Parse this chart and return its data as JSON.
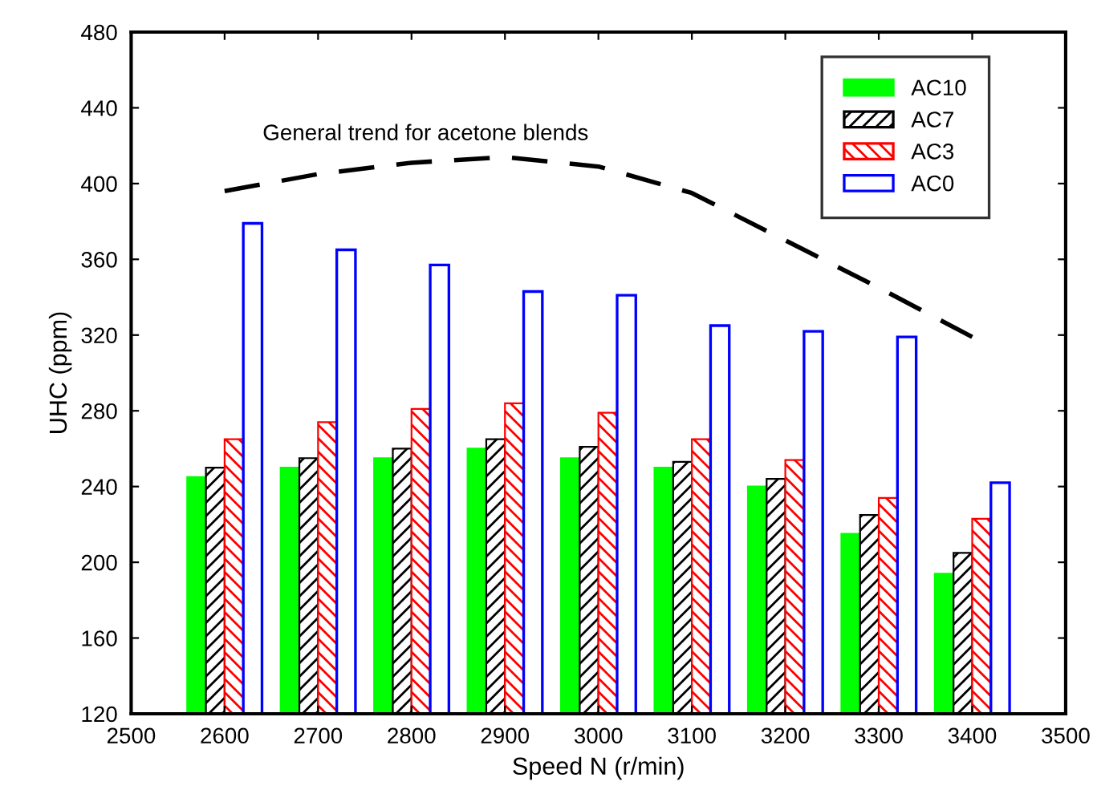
{
  "chart_data": {
    "type": "bar",
    "xlabel": "Speed N (r/min)",
    "ylabel": "UHC (ppm)",
    "x": [
      2600,
      2700,
      2800,
      2900,
      3000,
      3100,
      3200,
      3300,
      3400
    ],
    "xlim": [
      2500,
      3500
    ],
    "xticks": [
      2500,
      2600,
      2700,
      2800,
      2900,
      3000,
      3100,
      3200,
      3300,
      3400,
      3500
    ],
    "ylim": [
      120,
      480
    ],
    "yticks": [
      120,
      160,
      200,
      240,
      280,
      320,
      360,
      400,
      440,
      480
    ],
    "grid": false,
    "legend": "top right",
    "series": [
      {
        "name": "AC10",
        "color": "#00ff00",
        "values": [
          245,
          250,
          255,
          260,
          255,
          250,
          240,
          215,
          194
        ]
      },
      {
        "name": "AC7",
        "color": "#000000",
        "values": [
          250,
          255,
          260,
          265,
          261,
          253,
          244,
          225,
          205
        ]
      },
      {
        "name": "AC3",
        "color": "#ff0000",
        "values": [
          265,
          274,
          281,
          284,
          279,
          265,
          254,
          234,
          223
        ]
      },
      {
        "name": "AC0",
        "color": "#0000ff",
        "values": [
          379,
          365,
          357,
          343,
          341,
          325,
          322,
          319,
          242
        ]
      },
      {
        "type": "line",
        "color": "#000000",
        "line_style": "dashed",
        "x": [
          2600,
          2700,
          2800,
          2900,
          3000,
          3100,
          3200,
          3300,
          3400
        ],
        "values": [
          396,
          405,
          411,
          414,
          409,
          395,
          370,
          345,
          319
        ]
      }
    ],
    "annotations": [
      "General trend for acetone blends"
    ]
  }
}
